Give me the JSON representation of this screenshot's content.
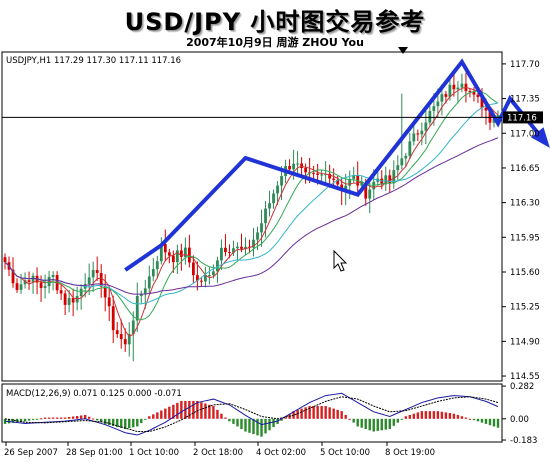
{
  "page": {
    "title": "USD/JPY 小时图交易参考",
    "subtitle": "2007年10月9日 周游 ZHOU You"
  },
  "colors": {
    "candle_up": "#2e8b57",
    "candle_down": "#d40000",
    "ma_fast": "#cc3333",
    "ma_mid": "#33aa55",
    "ma_cyan": "#33b5c9",
    "ma_slow": "#6a2b9a",
    "trend": "#1f33d6",
    "macd_main": "#1a1aa0",
    "macd_signal": "#000000",
    "macd_hist_pos": "#d42020",
    "macd_hist_neg": "#2a8a2a"
  },
  "chart_data": [
    {
      "type": "candlestick",
      "header": "USDJPY,H1  117.29 117.30 117.11 117.16",
      "y_ticks": [
        "117.70",
        "117.35",
        "117.00",
        "116.65",
        "116.30",
        "115.95",
        "115.60",
        "115.25",
        "114.90",
        "114.55"
      ],
      "ylim": [
        114.5,
        117.82
      ],
      "current_price": "117.16",
      "x_labels": [
        "26 Sep 2007",
        "28 Sep 01:00",
        "1 Oct 10:00",
        "2 Oct 18:00",
        "4 Oct 02:00",
        "5 Oct 10:00",
        "8 Oct 19:00"
      ],
      "key_points": [
        {
          "i": 0,
          "close": 115.7
        },
        {
          "i": 3,
          "close": 115.45
        },
        {
          "i": 6,
          "close": 115.55
        },
        {
          "i": 9,
          "close": 115.45
        },
        {
          "i": 12,
          "close": 115.55
        },
        {
          "i": 15,
          "close": 115.3
        },
        {
          "i": 18,
          "close": 115.35
        },
        {
          "i": 21,
          "close": 115.6
        },
        {
          "i": 24,
          "close": 115.5
        },
        {
          "i": 27,
          "close": 115.05
        },
        {
          "i": 30,
          "close": 114.85
        },
        {
          "i": 33,
          "close": 115.3
        },
        {
          "i": 36,
          "close": 115.55
        },
        {
          "i": 39,
          "close": 115.85
        },
        {
          "i": 42,
          "close": 115.75
        },
        {
          "i": 45,
          "close": 115.8
        },
        {
          "i": 48,
          "close": 115.5
        },
        {
          "i": 51,
          "close": 115.55
        },
        {
          "i": 54,
          "close": 115.85
        },
        {
          "i": 57,
          "close": 115.85
        },
        {
          "i": 60,
          "close": 115.8
        },
        {
          "i": 63,
          "close": 116.0
        },
        {
          "i": 66,
          "close": 116.3
        },
        {
          "i": 69,
          "close": 116.6
        },
        {
          "i": 72,
          "close": 116.72
        },
        {
          "i": 75,
          "close": 116.55
        },
        {
          "i": 78,
          "close": 116.55
        },
        {
          "i": 81,
          "close": 116.6
        },
        {
          "i": 84,
          "close": 116.45
        },
        {
          "i": 87,
          "close": 116.55
        },
        {
          "i": 90,
          "close": 116.4
        },
        {
          "i": 93,
          "close": 116.55
        },
        {
          "i": 96,
          "close": 116.5
        },
        {
          "i": 99,
          "close": 116.75
        },
        {
          "i": 102,
          "close": 116.95
        },
        {
          "i": 105,
          "close": 117.15
        },
        {
          "i": 108,
          "close": 117.3
        },
        {
          "i": 111,
          "close": 117.45
        },
        {
          "i": 114,
          "close": 117.55
        },
        {
          "i": 117,
          "close": 117.35
        },
        {
          "i": 119,
          "close": 117.3
        },
        {
          "i": 121,
          "close": 117.16
        }
      ],
      "spikes": [
        {
          "i": 99,
          "high": 117.4
        },
        {
          "i": 32,
          "low": 114.7
        }
      ],
      "trend_polyline": [
        [
          30,
          115.62
        ],
        [
          39,
          115.87
        ],
        [
          60,
          116.75
        ],
        [
          88,
          116.38
        ],
        [
          114,
          117.72
        ],
        [
          123,
          117.1
        ],
        [
          126,
          117.35
        ],
        [
          135,
          116.9
        ]
      ]
    },
    {
      "type": "macd",
      "header": "MACD(12,26,9) 0.071 0.125 0.000 -0.071",
      "y_ticks": [
        "0.282",
        "0.00",
        "-0.183"
      ],
      "ylim": [
        -0.2,
        0.3
      ],
      "main_line": [
        [
          0,
          -0.02
        ],
        [
          5,
          -0.04
        ],
        [
          10,
          -0.03
        ],
        [
          15,
          -0.02
        ],
        [
          20,
          0.0
        ],
        [
          25,
          -0.05
        ],
        [
          30,
          -0.12
        ],
        [
          33,
          -0.14
        ],
        [
          36,
          -0.1
        ],
        [
          40,
          -0.03
        ],
        [
          44,
          0.06
        ],
        [
          48,
          0.14
        ],
        [
          52,
          0.17
        ],
        [
          56,
          0.12
        ],
        [
          60,
          0.03
        ],
        [
          64,
          -0.05
        ],
        [
          68,
          -0.02
        ],
        [
          72,
          0.06
        ],
        [
          76,
          0.14
        ],
        [
          80,
          0.2
        ],
        [
          84,
          0.22
        ],
        [
          88,
          0.14
        ],
        [
          92,
          0.06
        ],
        [
          96,
          0.02
        ],
        [
          100,
          0.08
        ],
        [
          104,
          0.14
        ],
        [
          108,
          0.18
        ],
        [
          112,
          0.2
        ],
        [
          116,
          0.19
        ],
        [
          120,
          0.15
        ],
        [
          124,
          0.09
        ]
      ],
      "signal_line": [
        [
          0,
          0.0
        ],
        [
          5,
          -0.03
        ],
        [
          10,
          -0.035
        ],
        [
          15,
          -0.025
        ],
        [
          20,
          -0.015
        ],
        [
          25,
          -0.03
        ],
        [
          30,
          -0.08
        ],
        [
          33,
          -0.11
        ],
        [
          36,
          -0.11
        ],
        [
          40,
          -0.07
        ],
        [
          44,
          -0.01
        ],
        [
          48,
          0.07
        ],
        [
          52,
          0.12
        ],
        [
          56,
          0.13
        ],
        [
          60,
          0.08
        ],
        [
          64,
          0.02
        ],
        [
          68,
          0.0
        ],
        [
          72,
          0.03
        ],
        [
          76,
          0.09
        ],
        [
          80,
          0.15
        ],
        [
          84,
          0.19
        ],
        [
          88,
          0.17
        ],
        [
          92,
          0.11
        ],
        [
          96,
          0.06
        ],
        [
          100,
          0.07
        ],
        [
          104,
          0.11
        ],
        [
          108,
          0.15
        ],
        [
          112,
          0.18
        ],
        [
          116,
          0.19
        ],
        [
          120,
          0.17
        ],
        [
          124,
          0.13
        ]
      ]
    }
  ]
}
